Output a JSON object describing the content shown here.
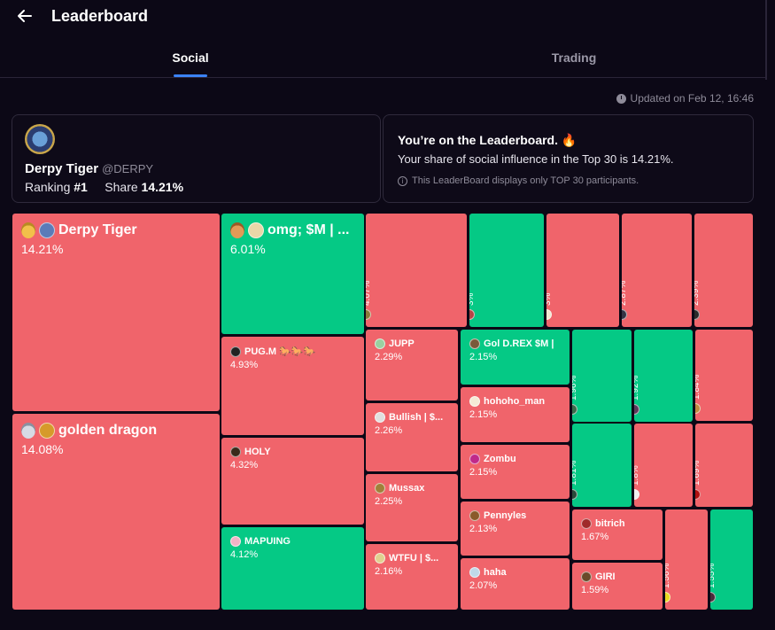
{
  "header": {
    "title": "Leaderboard"
  },
  "tabs": [
    {
      "label": "Social"
    },
    {
      "label": "Trading"
    }
  ],
  "updated": "Updated on Feb 12, 16:46",
  "profile": {
    "name": "Derpy Tiger",
    "handle": "@DERPY",
    "ranking_label": "Ranking",
    "ranking": "#1",
    "share_label": "Share",
    "share": "14.21%"
  },
  "notice": {
    "title": "You’re on the Leaderboard. 🔥",
    "text": "Your share of social influence in the Top 30 is 14.21%.",
    "note": "This LeaderBoard displays only TOP 30 participants."
  },
  "treemap": [
    {
      "name": "Derpy Tiger",
      "pct": "14.21%",
      "color": "red",
      "medal": "gold",
      "avatar": "#5b7bb8"
    },
    {
      "name": "golden dragon",
      "pct": "14.08%",
      "color": "red",
      "medal": "silver",
      "avatar": "#d69a2a"
    },
    {
      "name": "omg; $M | ...",
      "pct": "6.01%",
      "color": "green",
      "medal": "bronze",
      "avatar": "#e9d7a8"
    },
    {
      "name": "PUG.M 🐎🐎🐎",
      "pct": "4.93%",
      "color": "red",
      "avatar": "#222222"
    },
    {
      "name": "HOLY",
      "pct": "4.32%",
      "color": "red",
      "avatar": "#3a2a1a"
    },
    {
      "name": "MAPUING",
      "pct": "4.12%",
      "color": "green",
      "avatar": "#f0b3c6"
    },
    {
      "name": "Timi",
      "pct": "4.07%",
      "color": "red",
      "avatar": "#8c7a3a"
    },
    {
      "name": "POPI",
      "pct": "3%",
      "color": "green",
      "avatar": "#b54545"
    },
    {
      "name": "COBUBU",
      "pct": "3%",
      "color": "red",
      "avatar": "#f0e6d0"
    },
    {
      "name": "kaiye",
      "pct": "2.87%",
      "color": "red",
      "avatar": "#333344"
    },
    {
      "name": "Ilavioo",
      "pct": "2.39%",
      "color": "red",
      "avatar": "#2a2a2a"
    },
    {
      "name": "JUPP",
      "pct": "2.29%",
      "color": "red",
      "avatar": "#9ad0a0"
    },
    {
      "name": "Gol D.REX $M |",
      "pct": "2.15%",
      "color": "green",
      "avatar": "#7a5a3a"
    },
    {
      "name": "2rosa",
      "pct": "1.96%",
      "color": "green",
      "avatar": "#3a6a4a"
    },
    {
      "name": "IDOL",
      "pct": "1.92%",
      "color": "green",
      "avatar": "#5a3a5a"
    },
    {
      "name": "BUKIN",
      "pct": "1.84%",
      "color": "red",
      "avatar": "#c08a40"
    },
    {
      "name": "Bullish | $...",
      "pct": "2.26%",
      "color": "red",
      "avatar": "#e0e0e0"
    },
    {
      "name": "hohoho_man",
      "pct": "2.15%",
      "color": "red",
      "avatar": "#f5ead5"
    },
    {
      "name": "Zombu",
      "pct": "2.15%",
      "color": "red",
      "avatar": "#c02a8a"
    },
    {
      "name": "MeMeX_...",
      "pct": "1.81%",
      "color": "green",
      "avatar": "#2a4a3a"
    },
    {
      "name": "linus",
      "pct": "1.8%",
      "color": "red",
      "avatar": "#f0f0f0"
    },
    {
      "name": "MemeCore",
      "pct": "1.69%",
      "color": "red",
      "avatar": "#b01010"
    },
    {
      "name": "Mussax",
      "pct": "2.25%",
      "color": "red",
      "avatar": "#a0803a"
    },
    {
      "name": "Pennyles",
      "pct": "2.13%",
      "color": "red",
      "avatar": "#8a5a2a"
    },
    {
      "name": "bitrich",
      "pct": "1.67%",
      "color": "red",
      "avatar": "#a02a2a"
    },
    {
      "name": "WTFU | $...",
      "pct": "2.16%",
      "color": "red",
      "avatar": "#e0d090"
    },
    {
      "name": "haha",
      "pct": "2.07%",
      "color": "red",
      "avatar": "#c0d8e8"
    },
    {
      "name": "GIRI",
      "pct": "1.59%",
      "color": "red",
      "avatar": "#6a4a2a"
    },
    {
      "name": "Proof of Sleep",
      "pct": "1.56%",
      "color": "red",
      "avatar": "#e8d820"
    },
    {
      "name": "AthMelan",
      "pct": "1.55%",
      "color": "green",
      "avatar": "#4a2a3a"
    }
  ]
}
